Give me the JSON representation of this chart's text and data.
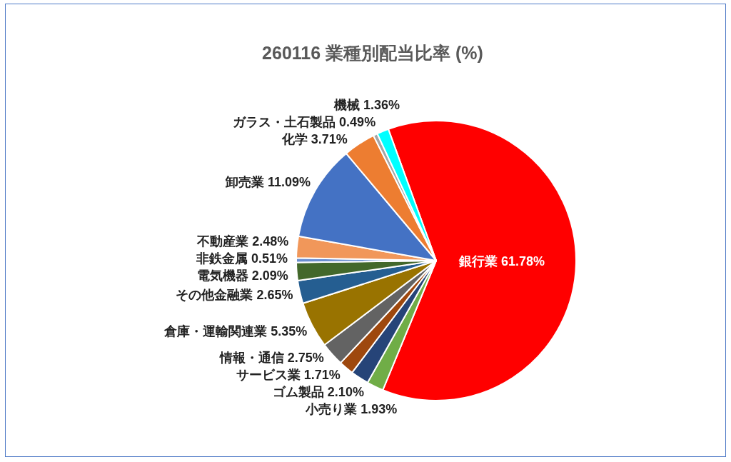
{
  "chart_data": {
    "type": "pie",
    "title": "260116 業種別配当比率 (%)",
    "categories": [
      "銀行業",
      "小売り業",
      "ゴム製品",
      "サービス業",
      "情報・通信",
      "倉庫・運輸関連業",
      "その他金融業",
      "電気機器",
      "非鉄金属",
      "不動産業",
      "卸売業",
      "化学",
      "ガラス・土石製品",
      "機械"
    ],
    "values": [
      61.78,
      1.93,
      2.1,
      1.71,
      2.75,
      5.35,
      2.65,
      2.09,
      0.51,
      2.48,
      11.09,
      3.71,
      0.49,
      1.36
    ],
    "colors": [
      "#ff0000",
      "#70ad47",
      "#264478",
      "#9e480e",
      "#636363",
      "#997300",
      "#255e91",
      "#43682b",
      "#698ed0",
      "#f1975a",
      "#4472c4",
      "#ed7d31",
      "#a5a5a5",
      "#00ffff"
    ],
    "value_labels": [
      "61.78%",
      "1.93%",
      "2.10%",
      "1.71%",
      "2.75%",
      "5.35%",
      "2.65%",
      "2.09%",
      "0.51%",
      "2.48%",
      "11.09%",
      "3.71%",
      "0.49%",
      "1.36%"
    ]
  }
}
